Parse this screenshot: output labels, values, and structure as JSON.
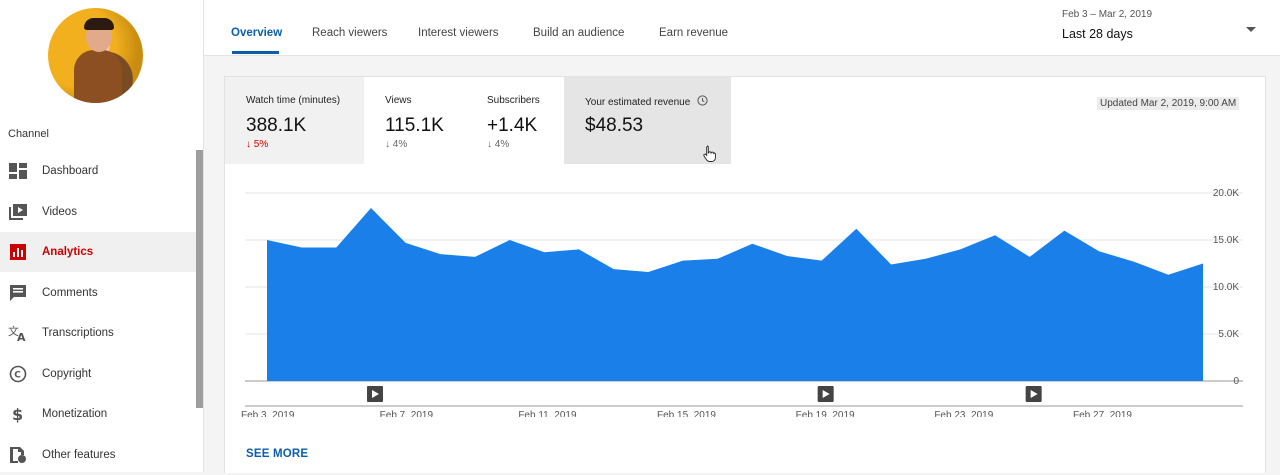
{
  "sidebar": {
    "section_label": "Channel",
    "items": [
      {
        "label": "Dashboard",
        "icon": "dashboard-icon"
      },
      {
        "label": "Videos",
        "icon": "videos-icon"
      },
      {
        "label": "Analytics",
        "icon": "analytics-icon",
        "active": true
      },
      {
        "label": "Comments",
        "icon": "comments-icon"
      },
      {
        "label": "Transcriptions",
        "icon": "transcriptions-icon"
      },
      {
        "label": "Copyright",
        "icon": "copyright-icon"
      },
      {
        "label": "Monetization",
        "icon": "monetization-icon"
      },
      {
        "label": "Other features",
        "icon": "other-features-icon"
      }
    ]
  },
  "tabs": [
    {
      "label": "Overview",
      "active": true
    },
    {
      "label": "Reach viewers"
    },
    {
      "label": "Interest viewers"
    },
    {
      "label": "Build an audience"
    },
    {
      "label": "Earn revenue"
    }
  ],
  "date_picker": {
    "range": "Feb 3 – Mar 2, 2019",
    "period": "Last 28 days"
  },
  "metrics": [
    {
      "label": "Watch time (minutes)",
      "value": "388.1K",
      "change": "5%"
    },
    {
      "label": "Views",
      "value": "115.1K",
      "change": "4%"
    },
    {
      "label": "Subscribers",
      "value": "+1.4K",
      "change": "4%"
    },
    {
      "label": "Your estimated revenue",
      "value": "$48.53"
    }
  ],
  "updated": "Updated Mar 2, 2019, 9:00 AM",
  "see_more": "SEE MORE",
  "colors": {
    "accent": "#0b5ea8",
    "series": "#1a7fe8",
    "active_nav": "#cc0000"
  },
  "chart_data": {
    "type": "area",
    "x": [
      "Feb 3",
      "Feb 4",
      "Feb 5",
      "Feb 6",
      "Feb 7",
      "Feb 8",
      "Feb 9",
      "Feb 10",
      "Feb 11",
      "Feb 12",
      "Feb 13",
      "Feb 14",
      "Feb 15",
      "Feb 16",
      "Feb 17",
      "Feb 18",
      "Feb 19",
      "Feb 20",
      "Feb 21",
      "Feb 22",
      "Feb 23",
      "Feb 24",
      "Feb 25",
      "Feb 26",
      "Feb 27",
      "Feb 28",
      "Mar 1",
      "Mar 2"
    ],
    "values": [
      15000,
      14200,
      14200,
      18400,
      14700,
      13500,
      13200,
      15000,
      13700,
      14000,
      11900,
      11600,
      12800,
      13000,
      14600,
      13300,
      12800,
      16200,
      12400,
      13000,
      14000,
      15500,
      13200,
      16000,
      13800,
      12700,
      11300,
      12500
    ],
    "x_tick_labels": [
      "Feb 3, 2019",
      "Feb 7, 2019",
      "Feb 11, 2019",
      "Feb 15, 2019",
      "Feb 19, 2019",
      "Feb 23, 2019",
      "Feb 27, 2019"
    ],
    "y_tick_labels": [
      "20.0K",
      "15.0K",
      "10.0K",
      "5.0K",
      "0"
    ],
    "ylim": [
      0,
      20000
    ],
    "video_markers": [
      "Feb 6",
      "Feb 19",
      "Feb 25"
    ],
    "grid": true
  }
}
